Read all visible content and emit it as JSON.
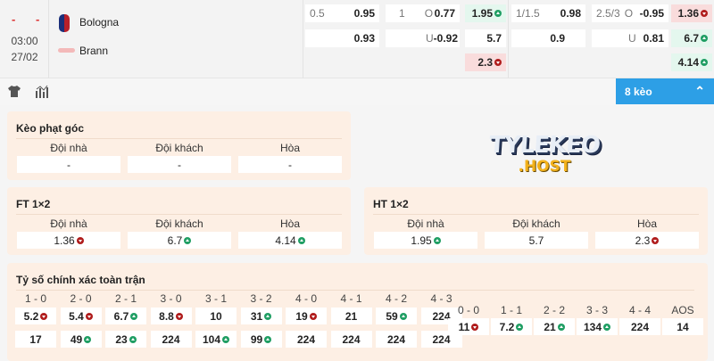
{
  "match": {
    "home_score": "-",
    "away_score": "-",
    "time": "03:00",
    "date": "27/02",
    "home": "Bologna",
    "away": "Brann"
  },
  "odds": {
    "hdp_ft": {
      "line": "0.5",
      "home": "0.95",
      "away": "0.93"
    },
    "ou_ft": {
      "line": "1",
      "over_label": "O",
      "over": "0.77",
      "under_label": "U",
      "under": "-0.92"
    },
    "x12_ht": [
      {
        "v": "1.95",
        "dir": "up"
      },
      {
        "v": "5.7",
        "dir": null
      },
      {
        "v": "2.3",
        "dir": "down"
      }
    ],
    "hdp_ht": {
      "line": "1/1.5",
      "home": "0.98",
      "away": "0.9"
    },
    "ou_ht": {
      "line": "2.5/3",
      "over_label": "O",
      "over": "-0.95",
      "under_label": "U",
      "under": "0.81"
    },
    "x12_ft": [
      {
        "v": "1.36",
        "dir": "down"
      },
      {
        "v": "6.7",
        "dir": "up"
      },
      {
        "v": "4.14",
        "dir": "up"
      }
    ]
  },
  "toolbar": {
    "more_label": "8 kèo"
  },
  "logo": {
    "text": "TYLEKEO .HOST"
  },
  "corner": {
    "title": "Kèo phạt góc",
    "headers": [
      "Đội nhà",
      "Đội khách",
      "Hòa"
    ],
    "values": [
      {
        "v": "-",
        "dir": null
      },
      {
        "v": "-",
        "dir": null
      },
      {
        "v": "-",
        "dir": null
      }
    ]
  },
  "ft": {
    "title": "FT 1×2",
    "headers": [
      "Đội nhà",
      "Đội khách",
      "Hòa"
    ],
    "values": [
      {
        "v": "1.36",
        "dir": "down"
      },
      {
        "v": "6.7",
        "dir": "up"
      },
      {
        "v": "4.14",
        "dir": "up"
      }
    ]
  },
  "ht": {
    "title": "HT 1×2",
    "headers": [
      "Đội nhà",
      "Đội khách",
      "Hòa"
    ],
    "values": [
      {
        "v": "1.95",
        "dir": "up"
      },
      {
        "v": "5.7",
        "dir": null
      },
      {
        "v": "2.3",
        "dir": "down"
      }
    ]
  },
  "correct_score": {
    "title": "Tỷ số chính xác toàn trận",
    "home_cols": [
      {
        "label": "1 - 0",
        "a": {
          "v": "5.2",
          "dir": "down"
        },
        "b": {
          "v": "17",
          "dir": null
        }
      },
      {
        "label": "2 - 0",
        "a": {
          "v": "5.4",
          "dir": "down"
        },
        "b": {
          "v": "49",
          "dir": "up"
        }
      },
      {
        "label": "2 - 1",
        "a": {
          "v": "6.7",
          "dir": "up"
        },
        "b": {
          "v": "23",
          "dir": "up"
        }
      },
      {
        "label": "3 - 0",
        "a": {
          "v": "8.8",
          "dir": "down"
        },
        "b": {
          "v": "224",
          "dir": null
        }
      },
      {
        "label": "3 - 1",
        "a": {
          "v": "10",
          "dir": null
        },
        "b": {
          "v": "104",
          "dir": "up"
        }
      },
      {
        "label": "3 - 2",
        "a": {
          "v": "31",
          "dir": "up"
        },
        "b": {
          "v": "99",
          "dir": "up"
        }
      },
      {
        "label": "4 - 0",
        "a": {
          "v": "19",
          "dir": "down"
        },
        "b": {
          "v": "224",
          "dir": null
        }
      },
      {
        "label": "4 - 1",
        "a": {
          "v": "21",
          "dir": null
        },
        "b": {
          "v": "224",
          "dir": null
        }
      },
      {
        "label": "4 - 2",
        "a": {
          "v": "59",
          "dir": "up"
        },
        "b": {
          "v": "224",
          "dir": null
        }
      },
      {
        "label": "4 - 3",
        "a": {
          "v": "224",
          "dir": null
        },
        "b": {
          "v": "224",
          "dir": null
        }
      }
    ],
    "draw_cols": [
      {
        "label": "0 - 0",
        "a": {
          "v": "11",
          "dir": "down"
        }
      },
      {
        "label": "1 - 1",
        "a": {
          "v": "7.2",
          "dir": "up"
        }
      },
      {
        "label": "2 - 2",
        "a": {
          "v": "21",
          "dir": "up"
        }
      },
      {
        "label": "3 - 3",
        "a": {
          "v": "134",
          "dir": "up"
        }
      },
      {
        "label": "4 - 4",
        "a": {
          "v": "224",
          "dir": null
        }
      },
      {
        "label": "AOS",
        "a": {
          "v": "14",
          "dir": null
        }
      }
    ]
  },
  "colors": {
    "accent": "#2d9fe6",
    "up": "#1f9e63",
    "down": "#b01c1c",
    "panel": "#fdefe4"
  }
}
